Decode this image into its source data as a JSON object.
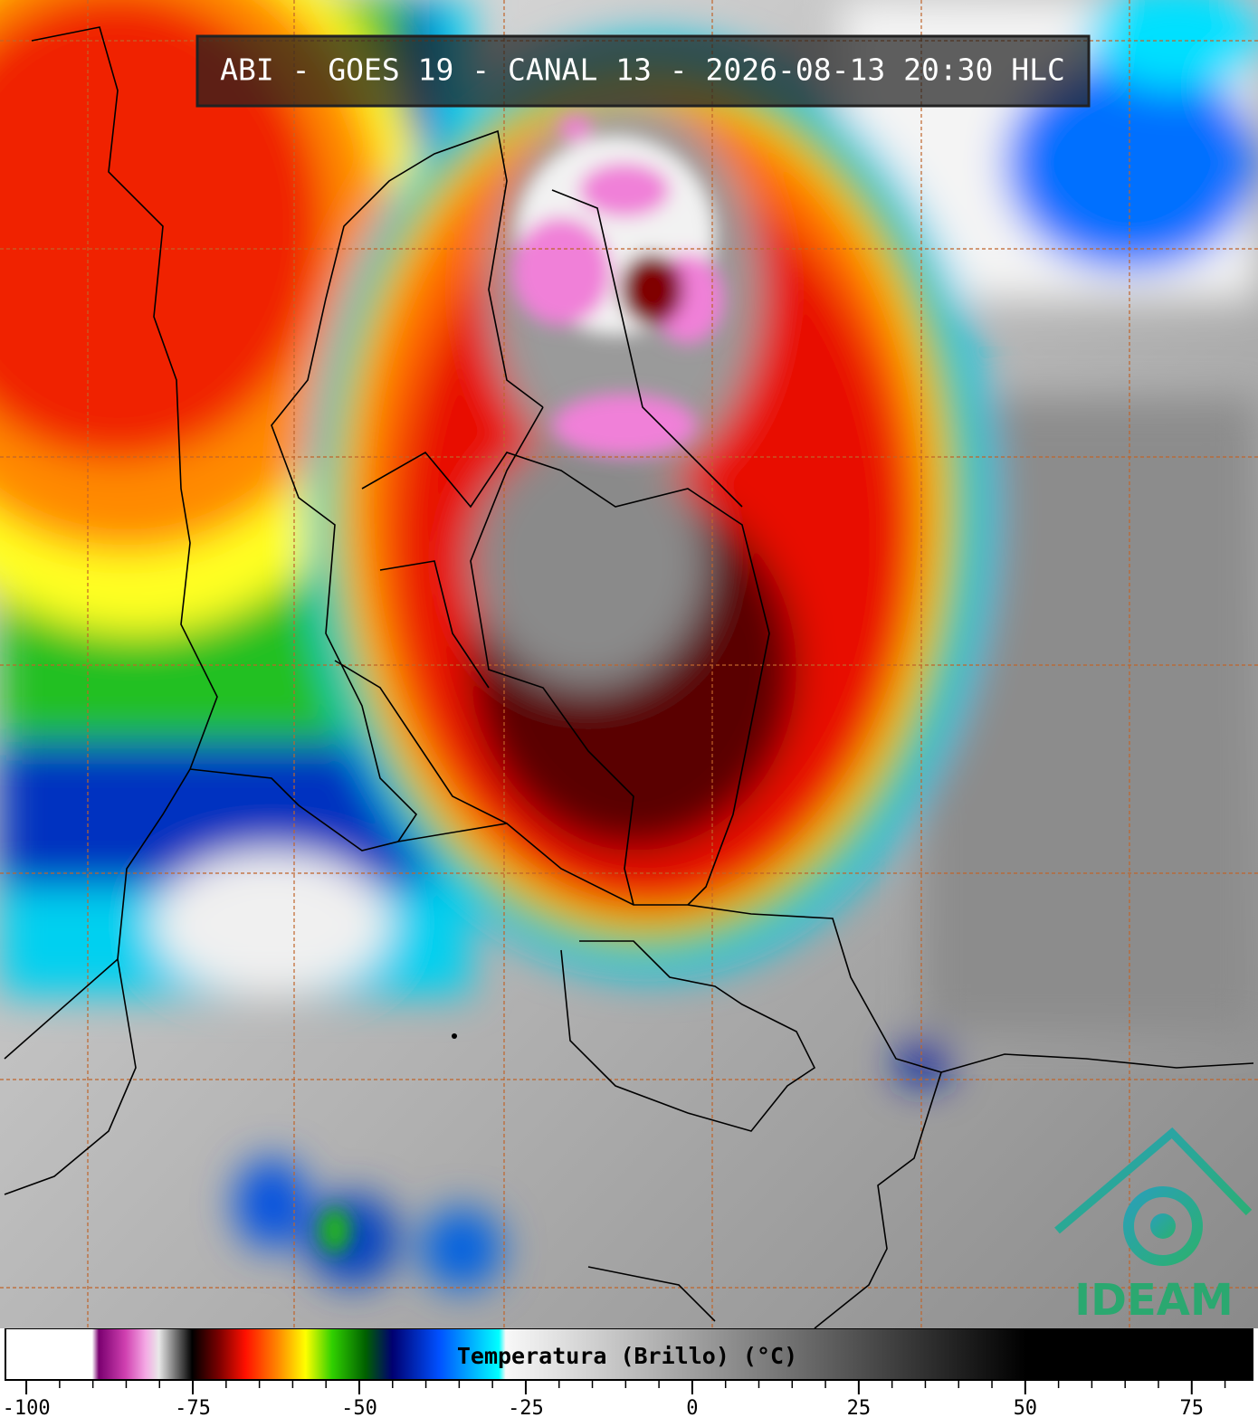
{
  "header": {
    "title": "ABI - GOES 19 - CANAL 13 - 2026-08-13 20:30 HLC"
  },
  "logo": {
    "text": "IDEAM"
  },
  "chart_data": {
    "type": "colorbar",
    "title": "Temperatura (Brillo) (°C)",
    "xlim": [
      -103,
      84
    ],
    "xticks": [
      -100,
      -75,
      -50,
      -25,
      0,
      25,
      50,
      75
    ],
    "minor_xticks": [
      -95,
      -90,
      -85,
      -80,
      -70,
      -65,
      -60,
      -55,
      -45,
      -40,
      -35,
      -30,
      -20,
      -15,
      -10,
      -5,
      5,
      10,
      15,
      20,
      30,
      35,
      40,
      45,
      55,
      60,
      65,
      70,
      80
    ],
    "color_stops": [
      {
        "value": -103,
        "color": "#ffffff"
      },
      {
        "value": -90,
        "color": "#ffffff"
      },
      {
        "value": -89,
        "color": "#7a0070"
      },
      {
        "value": -85,
        "color": "#d040b0"
      },
      {
        "value": -82,
        "color": "#f4a8e4"
      },
      {
        "value": -80,
        "color": "#e8e8e8"
      },
      {
        "value": -75,
        "color": "#000000"
      },
      {
        "value": -71,
        "color": "#7a0000"
      },
      {
        "value": -67,
        "color": "#ff1000"
      },
      {
        "value": -62,
        "color": "#ff8c00"
      },
      {
        "value": -58,
        "color": "#ffff00"
      },
      {
        "value": -54,
        "color": "#30d000"
      },
      {
        "value": -49,
        "color": "#006000"
      },
      {
        "value": -45,
        "color": "#000070"
      },
      {
        "value": -38,
        "color": "#0050ff"
      },
      {
        "value": -29,
        "color": "#00ffff"
      },
      {
        "value": -28,
        "color": "#f8f8f8"
      },
      {
        "value": -20,
        "color": "#e0e0e0"
      },
      {
        "value": 50,
        "color": "#000000"
      },
      {
        "value": 84,
        "color": "#000000"
      }
    ]
  }
}
